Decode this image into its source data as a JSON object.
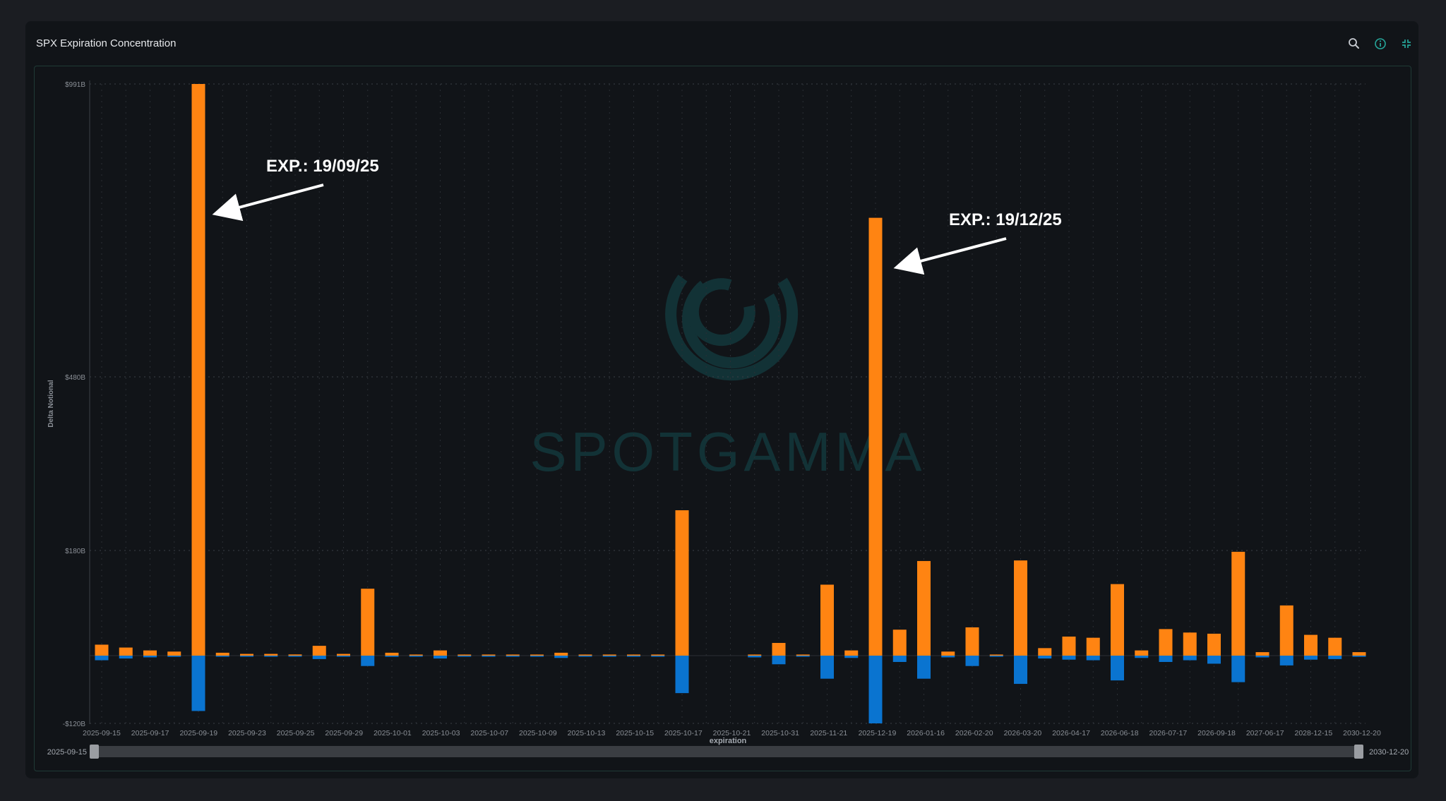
{
  "panel": {
    "title": "SPX Expiration Concentration",
    "icons": [
      "search-icon",
      "info-icon",
      "collapse-icon"
    ],
    "accent": "#26a69a"
  },
  "watermark": {
    "text": "SPOTGAMMA"
  },
  "colors": {
    "positive": "#ff8412",
    "negative": "#0a74d0"
  },
  "annotations": [
    {
      "label": "EXP.: 19/09/25",
      "target": "2025-09-19"
    },
    {
      "label": "EXP.: 19/12/25",
      "target": "2025-12-19"
    }
  ],
  "range_slider": {
    "start_label": "2025-09-15",
    "end_label": "2030-12-20"
  },
  "chart_data": {
    "type": "bar",
    "stacked": true,
    "ylabel": "Delta Notional",
    "xlabel": "expiration",
    "yticks": [
      "$991B",
      "$480B",
      "$180B",
      "-$120B"
    ],
    "grid": true,
    "categories": [
      "2025-09-15",
      "2025-09-16",
      "2025-09-17",
      "2025-09-18",
      "2025-09-19",
      "2025-09-22",
      "2025-09-23",
      "2025-09-24",
      "2025-09-25",
      "2025-09-26",
      "2025-09-29",
      "2025-09-30",
      "2025-10-01",
      "2025-10-02",
      "2025-10-03",
      "2025-10-06",
      "2025-10-07",
      "2025-10-08",
      "2025-10-09",
      "2025-10-10",
      "2025-10-13",
      "2025-10-14",
      "2025-10-15",
      "2025-10-16",
      "2025-10-17",
      "2025-10-20",
      "2025-10-21",
      "2025-10-24",
      "2025-10-31",
      "2025-11-07",
      "2025-11-21",
      "2025-11-28",
      "2025-12-19",
      "2025-12-31",
      "2026-01-16",
      "2026-01-30",
      "2026-02-20",
      "2026-02-27",
      "2026-03-20",
      "2026-03-31",
      "2026-04-17",
      "2026-05-15",
      "2026-06-18",
      "2026-06-30",
      "2026-07-17",
      "2026-08-21",
      "2026-09-18",
      "2026-12-18",
      "2027-06-17",
      "2027-12-17",
      "2028-12-15",
      "2029-12-21",
      "2030-12-20"
    ],
    "xtick_labels": [
      "2025-09-15",
      "2025-09-17",
      "2025-09-19",
      "2025-09-23",
      "2025-09-25",
      "2025-09-29",
      "2025-10-01",
      "2025-10-03",
      "2025-10-07",
      "2025-10-09",
      "2025-10-13",
      "2025-10-15",
      "2025-10-17",
      "2025-10-21",
      "2025-10-31",
      "2025-11-21",
      "2025-12-19",
      "2026-01-16",
      "2026-02-20",
      "2026-03-20",
      "2026-04-17",
      "2026-06-18",
      "2026-07-17",
      "2026-09-18",
      "2027-06-17",
      "2028-12-15",
      "2030-12-20"
    ],
    "series": [
      {
        "name": "positive",
        "values": [
          19,
          14,
          9,
          7,
          991,
          5,
          3,
          3,
          2,
          17,
          3,
          116,
          5,
          1,
          9,
          1,
          1,
          1,
          1,
          5,
          0.5,
          0.3,
          0.3,
          0.3,
          252,
          0,
          0,
          1,
          22,
          1,
          123,
          9,
          759,
          45,
          164,
          7,
          49,
          1,
          165,
          13,
          33,
          31,
          124,
          9,
          46,
          40,
          38,
          180,
          6,
          87,
          36,
          31,
          6
        ]
      },
      {
        "name": "negative",
        "values": [
          -8,
          -5,
          -3,
          -2,
          -96,
          -1,
          -1,
          -1,
          -1,
          -6,
          -1,
          -18,
          -2,
          -0.5,
          -5,
          -0.5,
          -0.5,
          -0.5,
          -0.5,
          -4,
          -0.3,
          -0.2,
          -0.2,
          -0.2,
          -65,
          0,
          0,
          -3,
          -15,
          -1,
          -40,
          -4,
          -120,
          -11,
          -40,
          -3,
          -18,
          -1,
          -49,
          -5,
          -7,
          -8,
          -43,
          -4,
          -11,
          -8,
          -14,
          -46,
          -3,
          -17,
          -7,
          -6,
          -2
        ]
      }
    ]
  }
}
